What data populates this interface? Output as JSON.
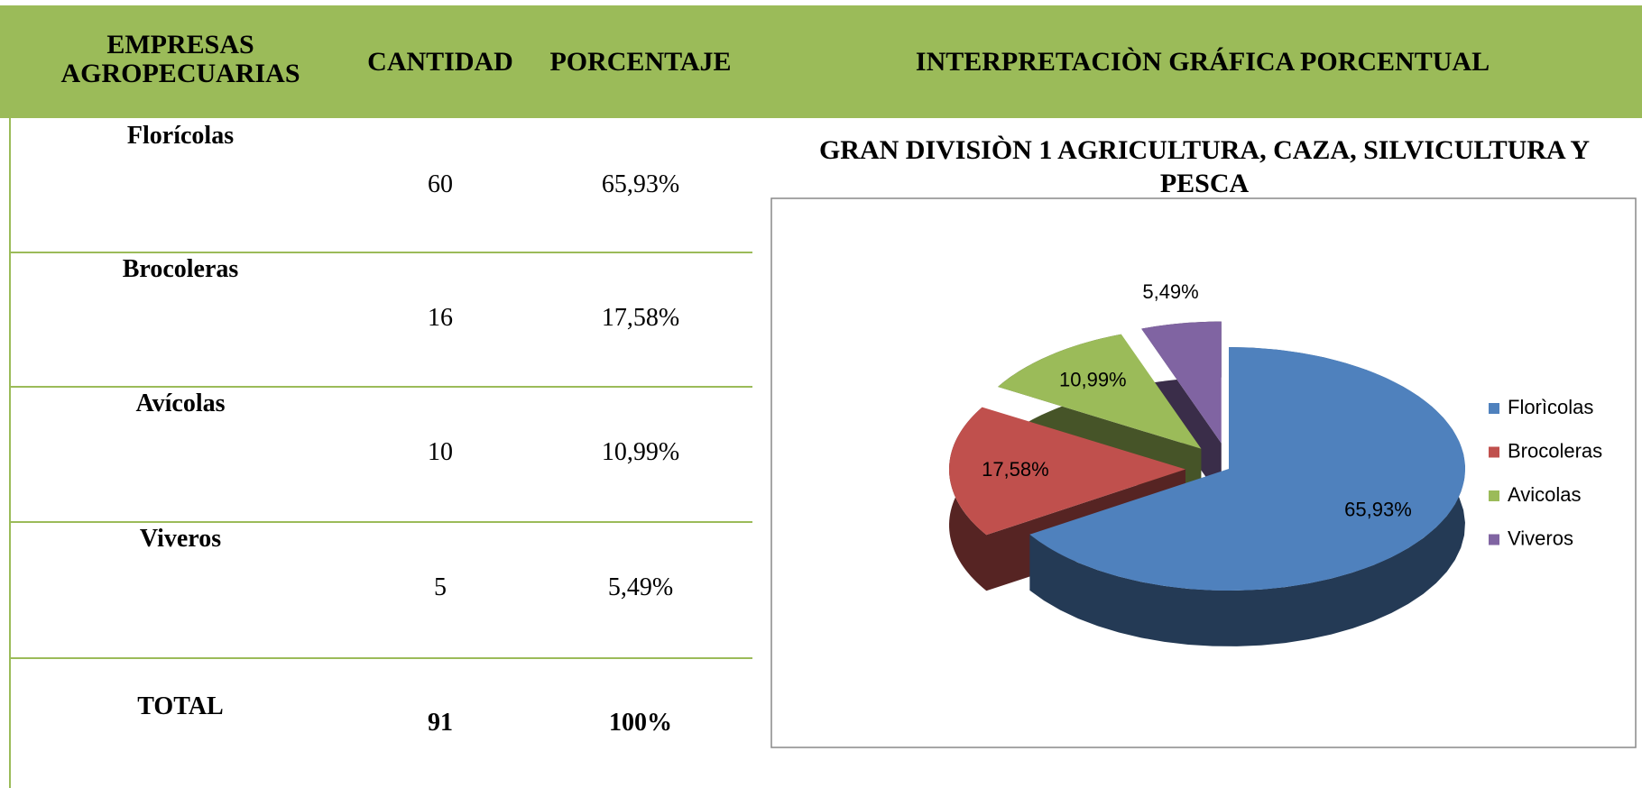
{
  "header": {
    "columns": [
      "EMPRESAS AGROPECUARIAS",
      "CANTIDAD",
      "PORCENTAJE"
    ],
    "panel": "INTERPRETACIÒN GRÁFICA PORCENTUAL"
  },
  "table": {
    "rows": [
      [
        "Florícolas",
        60,
        "65,93%"
      ],
      [
        "Brocoleras",
        16,
        "17,58%"
      ],
      [
        "Avícolas",
        10,
        "10,99%"
      ],
      [
        "Viveros",
        5,
        "5,49%"
      ]
    ],
    "total": [
      "TOTAL",
      91,
      "100%"
    ]
  },
  "chart_data": {
    "type": "pie",
    "title": "GRAN DIVISIÒN 1 AGRICULTURA, CAZA, SILVICULTURA Y PESCA",
    "categories": [
      "Florìcolas",
      "Brocoleras",
      "Avicolas",
      "Viveros"
    ],
    "values": [
      65.93,
      17.58,
      10.99,
      5.49
    ],
    "value_labels": [
      "65,93%",
      "17,58%",
      "10,99%",
      "5,49%"
    ],
    "colors": [
      "#4f81bd",
      "#c0504d",
      "#9bbb59",
      "#8064a2"
    ],
    "legend": "right"
  }
}
